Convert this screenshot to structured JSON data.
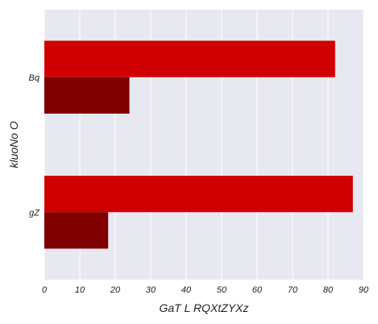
{
  "chart_data": {
    "type": "bar",
    "orientation": "horizontal",
    "categories": [
      "Bq",
      "gZ"
    ],
    "series": [
      {
        "values": [
          82,
          87
        ],
        "color": "#d10000"
      },
      {
        "values": [
          24,
          18
        ],
        "color": "#800000"
      }
    ],
    "xlabel": "GaT L RQXtZYXz",
    "ylabel": "kluoNo O",
    "xlim": [
      0,
      90
    ],
    "xticks": [
      0,
      10,
      20,
      30,
      40,
      50,
      60,
      70,
      80,
      90
    ],
    "grid": true,
    "background_color": "#e8e8f1",
    "grid_color": "#ffffff",
    "legend": "none"
  }
}
